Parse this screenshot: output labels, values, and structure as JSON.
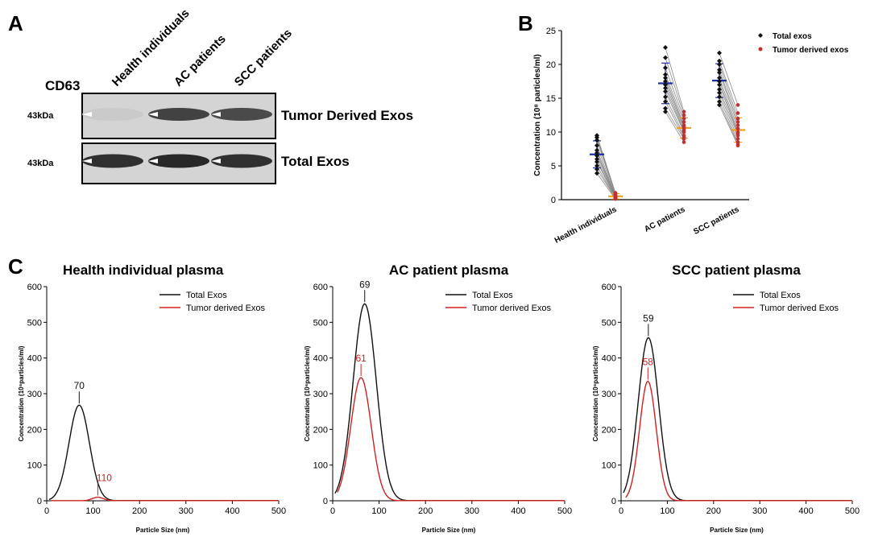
{
  "panelA": {
    "letter": "A",
    "marker": "CD63",
    "columns": [
      "Health individuals",
      "AC patients",
      "SCC patients"
    ],
    "kda_label": "43kDa",
    "blots": [
      {
        "label": "Tumor Derived Exos",
        "intensity": [
          0.05,
          0.85,
          0.8
        ]
      },
      {
        "label": "Total Exos",
        "intensity": [
          0.95,
          1.0,
          0.95
        ]
      }
    ]
  },
  "chart_data": [
    {
      "id": "B",
      "type": "scatter",
      "letter": "B",
      "categories": [
        "Health individuals",
        "AC patients",
        "SCC patients"
      ],
      "ylabel": "Concentration (10⁸ particles/ml)",
      "ylim": [
        0,
        25
      ],
      "yticks": [
        0,
        5,
        10,
        15,
        20,
        25
      ],
      "legend": [
        "Total exos",
        "Tumor derived exos"
      ],
      "series": [
        {
          "name": "Total exos",
          "color": "#111111",
          "mean_color": "#1f2fa8",
          "means": [
            6.7,
            17.2,
            17.6
          ],
          "sd": [
            2.0,
            3.0,
            2.5
          ],
          "values": [
            [
              9.5,
              9.2,
              8.8,
              8.0,
              7.3,
              6.9,
              6.5,
              6.0,
              5.6,
              5.0,
              4.5,
              3.9
            ],
            [
              22.5,
              21.0,
              19.5,
              18.5,
              18.0,
              17.5,
              17.0,
              16.5,
              16.0,
              15.2,
              14.5,
              13.5,
              13.0
            ],
            [
              21.7,
              20.5,
              20.0,
              19.2,
              18.8,
              18.0,
              17.5,
              17.0,
              16.3,
              15.8,
              15.2,
              14.5,
              14.0
            ]
          ]
        },
        {
          "name": "Tumor derived exos",
          "color": "#c03030",
          "mean_color": "#f0a020",
          "means": [
            0.5,
            10.6,
            10.3
          ],
          "sd": [
            0.4,
            1.5,
            1.8
          ],
          "values": [
            [
              1.0,
              0.9,
              0.8,
              0.6,
              0.5,
              0.5,
              0.4,
              0.3,
              0.3,
              0.2,
              0.2,
              0.1
            ],
            [
              13.0,
              12.5,
              12.0,
              11.5,
              11.0,
              10.8,
              10.5,
              10.2,
              10.0,
              9.5,
              9.2,
              9.0,
              8.5
            ],
            [
              14.0,
              12.8,
              12.0,
              11.5,
              11.0,
              10.5,
              10.0,
              9.8,
              9.5,
              9.0,
              8.5,
              8.2,
              8.0
            ]
          ]
        }
      ]
    },
    {
      "id": "C1",
      "type": "line",
      "letter": "C",
      "title": "Health individual plasma",
      "xlabel": "Particle Size (nm)",
      "ylabel": "Concentration (10⁶particles/ml)",
      "xlim": [
        0,
        500
      ],
      "ylim": [
        0,
        600
      ],
      "xticks": [
        0,
        100,
        200,
        300,
        400,
        500
      ],
      "yticks": [
        0,
        100,
        200,
        300,
        400,
        500,
        600
      ],
      "legend": [
        "Total Exos",
        "Tumor derived Exos"
      ],
      "series": [
        {
          "name": "Total Exos",
          "color": "#111111",
          "peak_x": 70,
          "peak_y": 268,
          "sigma": 22,
          "peak_label": "70"
        },
        {
          "name": "Tumor derived Exos",
          "color": "#d02020",
          "peak_x": 110,
          "peak_y": 10,
          "sigma": 12,
          "peak_label": "110"
        }
      ]
    },
    {
      "id": "C2",
      "type": "line",
      "title": "AC patient plasma",
      "xlabel": "Particle Size (nm)",
      "ylabel": "Concentration (10⁶particles/ml)",
      "xlim": [
        0,
        500
      ],
      "ylim": [
        0,
        600
      ],
      "xticks": [
        0,
        100,
        200,
        300,
        400,
        500
      ],
      "yticks": [
        0,
        100,
        200,
        300,
        400,
        500,
        600
      ],
      "legend": [
        "Total Exos",
        "Tumor derived Exos"
      ],
      "series": [
        {
          "name": "Total Exos",
          "color": "#111111",
          "peak_x": 69,
          "peak_y": 552,
          "sigma": 25,
          "peak_label": "69"
        },
        {
          "name": "Tumor derived Exos",
          "color": "#d02020",
          "peak_x": 61,
          "peak_y": 345,
          "sigma": 22,
          "peak_label": "61"
        }
      ]
    },
    {
      "id": "C3",
      "type": "line",
      "title": "SCC patient plasma",
      "xlabel": "Particle Size (nm)",
      "ylabel": "Concentration (10⁶particles/ml)",
      "xlim": [
        0,
        500
      ],
      "ylim": [
        0,
        600
      ],
      "xticks": [
        0,
        100,
        200,
        300,
        400,
        500
      ],
      "yticks": [
        0,
        100,
        200,
        300,
        400,
        500,
        600
      ],
      "legend": [
        "Total Exos",
        "Tumor derived Exos"
      ],
      "series": [
        {
          "name": "Total Exos",
          "color": "#111111",
          "peak_x": 59,
          "peak_y": 457,
          "sigma": 22,
          "peak_label": "59"
        },
        {
          "name": "Tumor derived Exos",
          "color": "#d02020",
          "peak_x": 58,
          "peak_y": 335,
          "sigma": 18,
          "peak_label": "58"
        }
      ]
    }
  ]
}
